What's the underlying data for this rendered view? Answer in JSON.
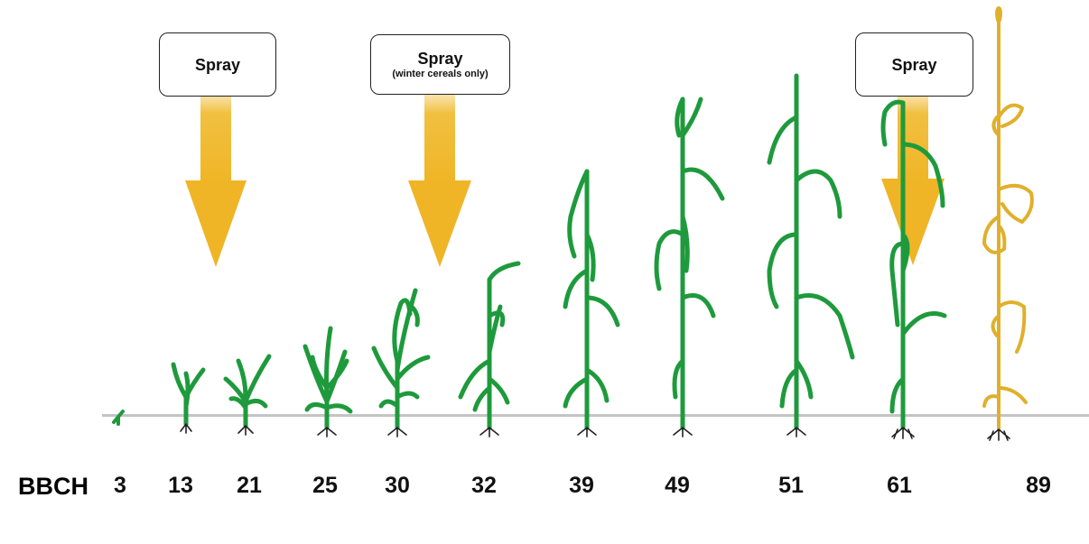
{
  "axis_label": "BBCH",
  "stages": [
    {
      "bbch": "3"
    },
    {
      "bbch": "13"
    },
    {
      "bbch": "21"
    },
    {
      "bbch": "25"
    },
    {
      "bbch": "30"
    },
    {
      "bbch": "32"
    },
    {
      "bbch": "39"
    },
    {
      "bbch": "49"
    },
    {
      "bbch": "51"
    },
    {
      "bbch": "61"
    },
    {
      "bbch": "89"
    }
  ],
  "spray_signs": [
    {
      "label": "Spray",
      "note": ""
    },
    {
      "label": "Spray",
      "note": "(winter cereals only)"
    },
    {
      "label": "Spray",
      "note": ""
    }
  ],
  "colors": {
    "plant": "#1e9a3c",
    "ripe_plant": "#e0b02c",
    "arrow": "#f0b92c",
    "soil": "#d3d3d3",
    "root": "#222222"
  }
}
